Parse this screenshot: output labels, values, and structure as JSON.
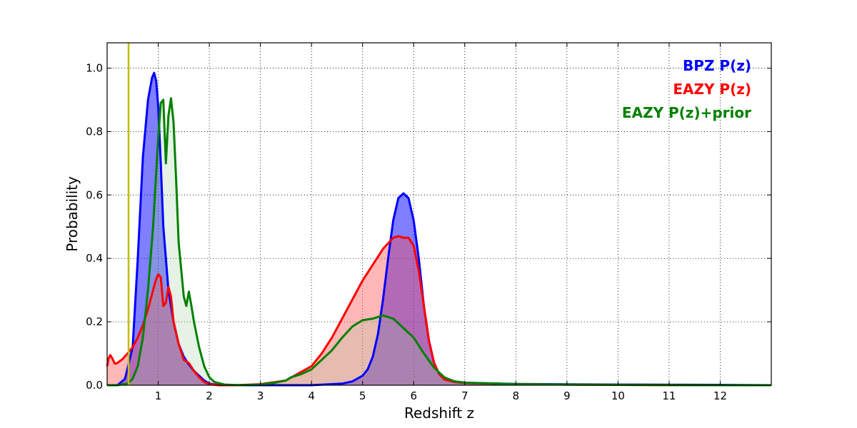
{
  "chart_data": {
    "type": "area",
    "xlabel": "Redshift z",
    "ylabel": "Probability",
    "xlim": [
      0,
      13
    ],
    "ylim": [
      0,
      1.08
    ],
    "xticks": [
      1,
      2,
      3,
      4,
      5,
      6,
      7,
      8,
      9,
      10,
      11,
      12
    ],
    "yticks": [
      0.0,
      0.2,
      0.4,
      0.6,
      0.8,
      1.0
    ],
    "xtick_labels": [
      "1",
      "2",
      "3",
      "4",
      "5",
      "6",
      "7",
      "8",
      "9",
      "10",
      "11",
      "12"
    ],
    "ytick_labels": [
      "0.0",
      "0.2",
      "0.4",
      "0.6",
      "0.8",
      "1.0"
    ],
    "grid": true,
    "legend_position": "top-right",
    "vertical_line": {
      "x": 0.42,
      "color": "#bfbf00"
    },
    "series": [
      {
        "name": "BPZ P(z)",
        "color": "#0000ff",
        "fill": "#0000ff",
        "fill_opacity": 0.5,
        "x": [
          0.0,
          0.2,
          0.35,
          0.5,
          0.6,
          0.7,
          0.8,
          0.88,
          0.92,
          0.96,
          1.0,
          1.05,
          1.1,
          1.2,
          1.3,
          1.4,
          1.5,
          1.6,
          1.7,
          1.8,
          1.9,
          2.0,
          2.2,
          2.5,
          3.0,
          4.0,
          4.6,
          4.8,
          5.0,
          5.1,
          5.2,
          5.3,
          5.4,
          5.5,
          5.6,
          5.7,
          5.8,
          5.9,
          6.0,
          6.1,
          6.2,
          6.3,
          6.4,
          6.5,
          6.6,
          6.8,
          7.0,
          8.0,
          10.0,
          12.0,
          13.0
        ],
        "y": [
          0.0,
          0.0,
          0.02,
          0.12,
          0.4,
          0.72,
          0.9,
          0.97,
          0.985,
          0.96,
          0.88,
          0.7,
          0.5,
          0.3,
          0.2,
          0.13,
          0.09,
          0.065,
          0.045,
          0.03,
          0.015,
          0.005,
          0.0,
          0.0,
          0.0,
          0.0,
          0.005,
          0.012,
          0.03,
          0.05,
          0.09,
          0.16,
          0.27,
          0.4,
          0.52,
          0.59,
          0.605,
          0.59,
          0.52,
          0.4,
          0.25,
          0.14,
          0.07,
          0.035,
          0.02,
          0.012,
          0.008,
          0.004,
          0.002,
          0.001,
          0.0
        ]
      },
      {
        "name": "EAZY P(z)",
        "color": "#ff0000",
        "fill": "#ff4c4c",
        "fill_opacity": 0.4,
        "x": [
          0.0,
          0.03,
          0.06,
          0.1,
          0.15,
          0.2,
          0.3,
          0.4,
          0.5,
          0.6,
          0.7,
          0.8,
          0.9,
          0.95,
          1.0,
          1.05,
          1.1,
          1.15,
          1.2,
          1.25,
          1.3,
          1.4,
          1.5,
          1.6,
          1.7,
          1.8,
          1.9,
          2.0,
          2.2,
          2.5,
          3.0,
          3.5,
          4.0,
          4.2,
          4.4,
          4.6,
          4.8,
          5.0,
          5.2,
          5.4,
          5.6,
          5.7,
          5.8,
          5.9,
          6.0,
          6.1,
          6.2,
          6.3,
          6.4,
          6.5,
          6.6,
          6.8,
          7.0,
          8.0,
          10.0,
          12.0,
          13.0
        ],
        "y": [
          0.06,
          0.085,
          0.095,
          0.085,
          0.068,
          0.07,
          0.082,
          0.1,
          0.12,
          0.15,
          0.19,
          0.24,
          0.3,
          0.33,
          0.35,
          0.34,
          0.25,
          0.26,
          0.31,
          0.28,
          0.2,
          0.13,
          0.08,
          0.07,
          0.045,
          0.025,
          0.01,
          0.003,
          0.0,
          0.0,
          0.003,
          0.015,
          0.06,
          0.1,
          0.15,
          0.21,
          0.27,
          0.33,
          0.38,
          0.43,
          0.465,
          0.47,
          0.465,
          0.465,
          0.44,
          0.36,
          0.25,
          0.14,
          0.07,
          0.035,
          0.018,
          0.01,
          0.007,
          0.003,
          0.001,
          0.0,
          0.0
        ]
      },
      {
        "name": "EAZY P(z)+prior",
        "color": "#008000",
        "fill": "#99cc99",
        "fill_opacity": 0.25,
        "x": [
          0.0,
          0.2,
          0.4,
          0.5,
          0.6,
          0.7,
          0.8,
          0.9,
          1.0,
          1.05,
          1.1,
          1.15,
          1.2,
          1.25,
          1.3,
          1.35,
          1.4,
          1.5,
          1.55,
          1.6,
          1.65,
          1.7,
          1.8,
          1.9,
          2.0,
          2.1,
          2.3,
          2.6,
          3.0,
          3.3,
          3.5,
          3.6,
          3.8,
          4.0,
          4.2,
          4.4,
          4.6,
          4.8,
          5.0,
          5.2,
          5.4,
          5.6,
          5.8,
          6.0,
          6.2,
          6.4,
          6.6,
          6.8,
          7.0,
          8.0,
          10.0,
          12.0,
          13.0
        ],
        "y": [
          0.0,
          0.0,
          0.005,
          0.02,
          0.06,
          0.15,
          0.3,
          0.5,
          0.78,
          0.89,
          0.9,
          0.7,
          0.85,
          0.905,
          0.83,
          0.65,
          0.45,
          0.28,
          0.25,
          0.295,
          0.25,
          0.2,
          0.12,
          0.06,
          0.025,
          0.01,
          0.002,
          0.0,
          0.002,
          0.008,
          0.015,
          0.025,
          0.035,
          0.05,
          0.08,
          0.11,
          0.15,
          0.185,
          0.205,
          0.21,
          0.22,
          0.21,
          0.18,
          0.15,
          0.1,
          0.055,
          0.025,
          0.012,
          0.008,
          0.003,
          0.001,
          0.0,
          0.0
        ]
      }
    ]
  }
}
